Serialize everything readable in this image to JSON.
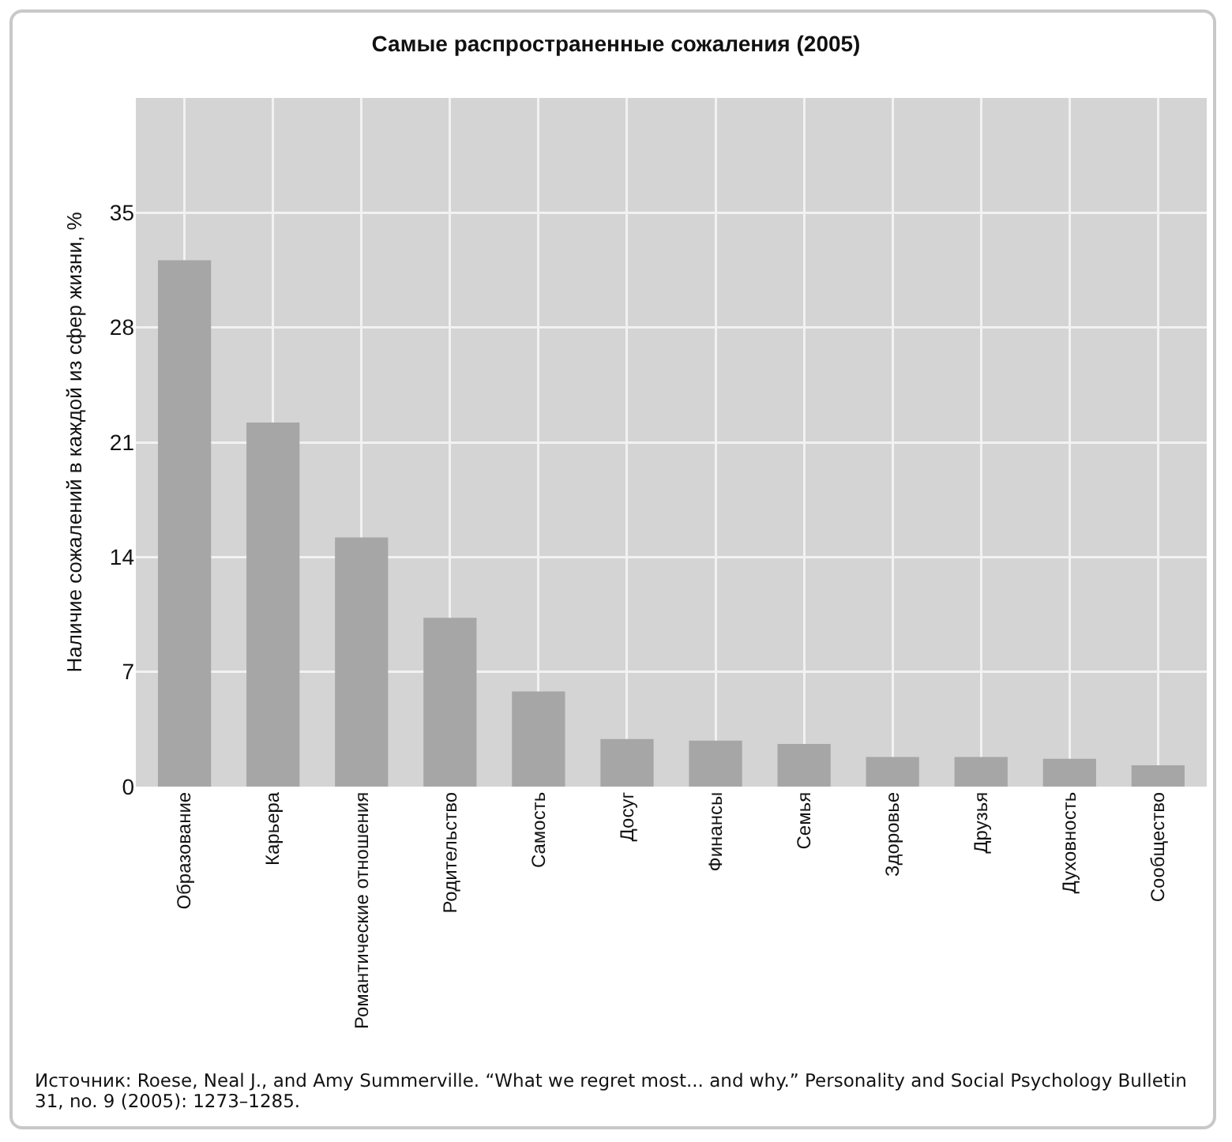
{
  "chart_data": {
    "type": "bar",
    "title": "Самые распространенные сожаления (2005)",
    "ylabel": "Наличие сожалений в каждой из сфер жизни, %",
    "categories": [
      "Образование",
      "Карьера",
      "Романтические отношения",
      "Родительство",
      "Самость",
      "Досуг",
      "Финансы",
      "Семья",
      "Здоровье",
      "Друзья",
      "Духовность",
      "Сообщество"
    ],
    "values": [
      32.1,
      22.2,
      15.2,
      10.3,
      5.8,
      2.9,
      2.8,
      2.6,
      1.8,
      1.8,
      1.7,
      1.3
    ],
    "color": "#a6a6a6",
    "ylim": [
      0,
      42
    ],
    "yticks": [
      0,
      7,
      14,
      21,
      28,
      35
    ],
    "grid": true,
    "annotations": [
      "Источник: Roese, Neal J., and Amy Summerville. “What we regret most... and why.” Personality and Social Psychology Bulletin 31, no. 9 (2005): 1273–1285."
    ]
  }
}
